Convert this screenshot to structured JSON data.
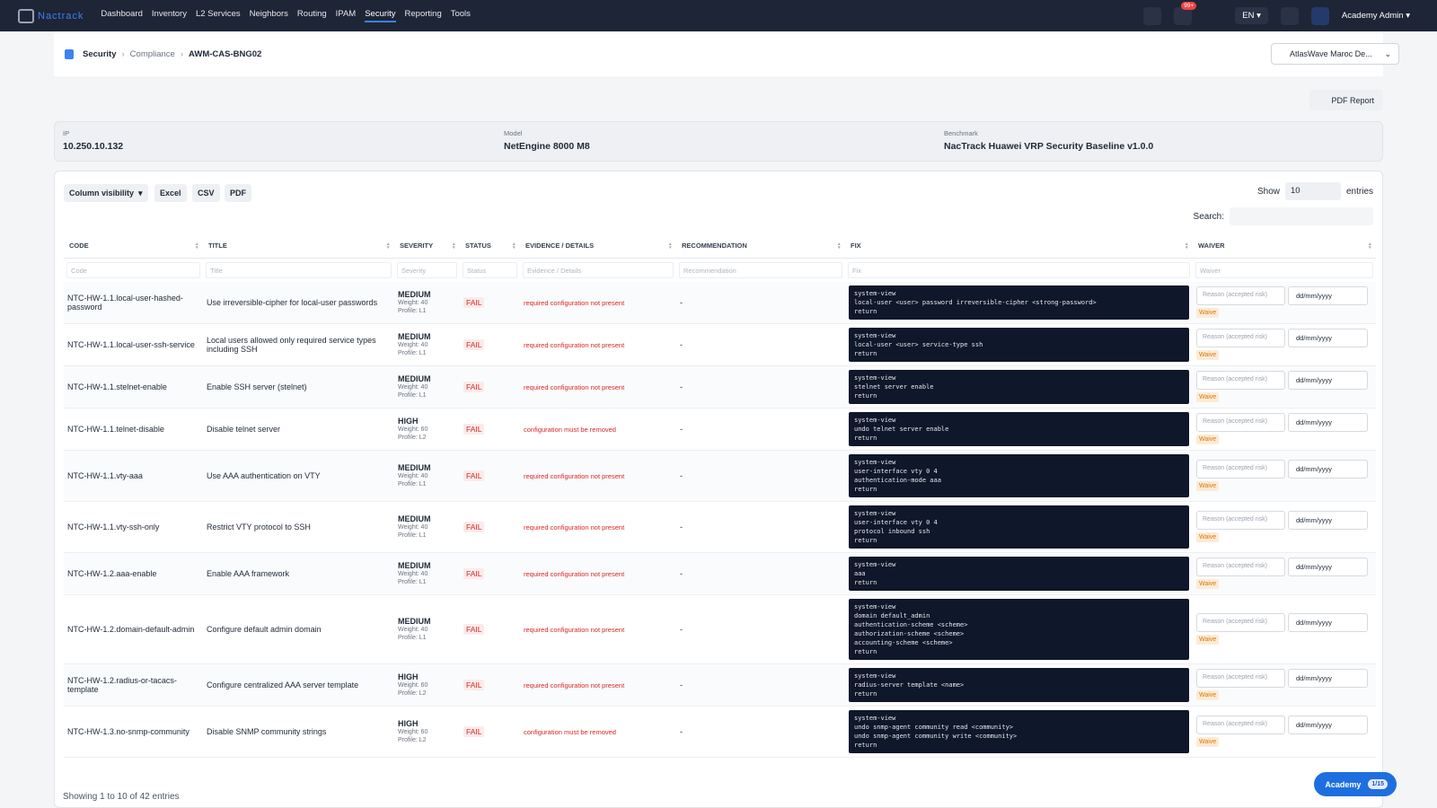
{
  "nav": {
    "logo": "Nactrack",
    "items": [
      "Dashboard",
      "Inventory",
      "L2 Services",
      "Neighbors",
      "Routing",
      "IPAM",
      "Security",
      "Reporting",
      "Tools"
    ],
    "active": 6,
    "badge": "99+",
    "lang": "EN",
    "user": "Academy Admin"
  },
  "breadcrumb": [
    "Security",
    "Compliance",
    "AWM-CAS-BNG02"
  ],
  "org_selector": "AtlasWave Maroc De...",
  "pdf_button": "PDF Report",
  "info": [
    {
      "label": "IP",
      "value": "10.250.10.132"
    },
    {
      "label": "Model",
      "value": "NetEngine 8000 M8"
    },
    {
      "label": "Benchmark",
      "value": "NacTrack Huawei VRP Security Baseline v1.0.0"
    }
  ],
  "toolbar": {
    "buttons": [
      "Column visibility",
      "Excel",
      "CSV",
      "PDF"
    ],
    "show_label": "Show",
    "entries_value": "10",
    "entries_label": "entries",
    "search_label": "Search:"
  },
  "table": {
    "columns": [
      "CODE",
      "TITLE",
      "SEVERITY",
      "STATUS",
      "EVIDENCE / DETAILS",
      "RECOMMENDATION",
      "FIX",
      "WAIVER"
    ],
    "filters": [
      "Code",
      "Title",
      "Severity",
      "Status",
      "Evidence / Details",
      "Recommendation",
      "Fix",
      "Waiver"
    ],
    "reason_placeholder": "Reason (accepted risk)",
    "date_placeholder": "dd/mm/yyyy",
    "waive_label": "Waive",
    "rows": [
      {
        "code": "NTC-HW-1.1.local-user-hashed-password",
        "title": "Use irreversible-cipher for local-user passwords",
        "severity": "MEDIUM",
        "weight": "Weight: 40",
        "profile": "Profile: L1",
        "status": "FAIL",
        "evidence": "required configuration not present",
        "recommendation": "-",
        "fix": [
          "system-view",
          "local-user <user> password irreversible-cipher <strong-password>",
          "return"
        ]
      },
      {
        "code": "NTC-HW-1.1.local-user-ssh-service",
        "title": "Local users allowed only required service types including SSH",
        "severity": "MEDIUM",
        "weight": "Weight: 40",
        "profile": "Profile: L1",
        "status": "FAIL",
        "evidence": "required configuration not present",
        "recommendation": "-",
        "fix": [
          "system-view",
          "local-user <user> service-type ssh",
          "return"
        ]
      },
      {
        "code": "NTC-HW-1.1.stelnet-enable",
        "title": "Enable SSH server (stelnet)",
        "severity": "MEDIUM",
        "weight": "Weight: 40",
        "profile": "Profile: L1",
        "status": "FAIL",
        "evidence": "required configuration not present",
        "recommendation": "-",
        "fix": [
          "system-view",
          "stelnet server enable",
          "return"
        ]
      },
      {
        "code": "NTC-HW-1.1.telnet-disable",
        "title": "Disable telnet server",
        "severity": "HIGH",
        "weight": "Weight: 60",
        "profile": "Profile: L2",
        "status": "FAIL",
        "evidence": "configuration must be removed",
        "recommendation": "-",
        "fix": [
          "system-view",
          "undo telnet server enable",
          "return"
        ]
      },
      {
        "code": "NTC-HW-1.1.vty-aaa",
        "title": "Use AAA authentication on VTY",
        "severity": "MEDIUM",
        "weight": "Weight: 40",
        "profile": "Profile: L1",
        "status": "FAIL",
        "evidence": "required configuration not present",
        "recommendation": "-",
        "fix": [
          "system-view",
          "user-interface vty 0 4",
          "authentication-mode aaa",
          "return"
        ]
      },
      {
        "code": "NTC-HW-1.1.vty-ssh-only",
        "title": "Restrict VTY protocol to SSH",
        "severity": "MEDIUM",
        "weight": "Weight: 40",
        "profile": "Profile: L1",
        "status": "FAIL",
        "evidence": "required configuration not present",
        "recommendation": "-",
        "fix": [
          "system-view",
          "user-interface vty 0 4",
          "protocol inbound ssh",
          "return"
        ]
      },
      {
        "code": "NTC-HW-1.2.aaa-enable",
        "title": "Enable AAA framework",
        "severity": "MEDIUM",
        "weight": "Weight: 40",
        "profile": "Profile: L1",
        "status": "FAIL",
        "evidence": "required configuration not present",
        "recommendation": "-",
        "fix": [
          "system-view",
          "aaa",
          "return"
        ]
      },
      {
        "code": "NTC-HW-1.2.domain-default-admin",
        "title": "Configure default admin domain",
        "severity": "MEDIUM",
        "weight": "Weight: 40",
        "profile": "Profile: L1",
        "status": "FAIL",
        "evidence": "required configuration not present",
        "recommendation": "-",
        "fix": [
          "system-view",
          "domain default_admin",
          "authentication-scheme <scheme>",
          "authorization-scheme <scheme>",
          "accounting-scheme <scheme>",
          "return"
        ]
      },
      {
        "code": "NTC-HW-1.2.radius-or-tacacs-template",
        "title": "Configure centralized AAA server template",
        "severity": "HIGH",
        "weight": "Weight: 60",
        "profile": "Profile: L2",
        "status": "FAIL",
        "evidence": "required configuration not present",
        "recommendation": "-",
        "fix": [
          "system-view",
          "radius-server template <name>",
          "return"
        ]
      },
      {
        "code": "NTC-HW-1.3.no-snmp-community",
        "title": "Disable SNMP community strings",
        "severity": "HIGH",
        "weight": "Weight: 60",
        "profile": "Profile: L2",
        "status": "FAIL",
        "evidence": "configuration must be removed",
        "recommendation": "-",
        "fix": [
          "system-view",
          "undo snmp-agent community read <community>",
          "undo snmp-agent community write <community>",
          "return"
        ]
      }
    ]
  },
  "footer": "Showing 1 to 10 of 42 entries",
  "academy": {
    "label": "Academy",
    "progress": "1/15"
  }
}
